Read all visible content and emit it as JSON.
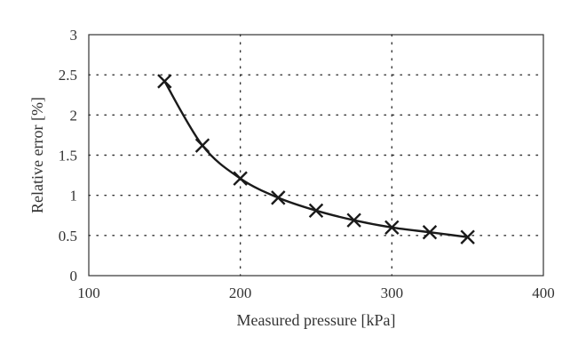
{
  "chart_data": {
    "type": "line",
    "title": "",
    "xlabel": "Measured pressure [kPa]",
    "ylabel": "Relative error [%]",
    "xlim": [
      100,
      400
    ],
    "ylim": [
      0,
      3
    ],
    "x_ticks": [
      100,
      200,
      300,
      400
    ],
    "y_ticks": [
      0,
      0.5,
      1,
      1.5,
      2,
      2.5,
      3
    ],
    "x_tick_labels": [
      "100",
      "200",
      "300",
      "400"
    ],
    "y_tick_labels": [
      "0",
      "0.5",
      "1",
      "1.5",
      "2",
      "2.5",
      "3"
    ],
    "grid": true,
    "legend": "none",
    "marker": "x",
    "line_color": "#1a1a1a",
    "series": [
      {
        "x": [
          150,
          175,
          200,
          225,
          250,
          275,
          300,
          325,
          350
        ],
        "y": [
          2.42,
          1.62,
          1.21,
          0.97,
          0.81,
          0.69,
          0.6,
          0.54,
          0.48
        ]
      }
    ]
  }
}
